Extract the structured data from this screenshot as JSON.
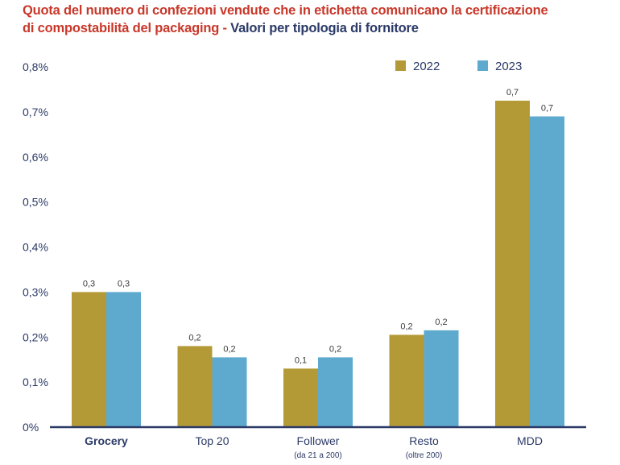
{
  "title": {
    "line1": "Quota del numero di confezioni vendute che in etichetta comunicano la certificazione",
    "line2_red": "di compostabilità del packaging -",
    "line2_blue": "Valori per tipologia di fornitore"
  },
  "colors": {
    "series_2022": "#b39a36",
    "series_2023": "#5eaacf",
    "axis": "#2b3a67"
  },
  "chart_data": {
    "type": "bar",
    "title": "Quota del numero di confezioni vendute che in etichetta comunicano la certificazione di compostabilità del packaging - Valori per tipologia di fornitore",
    "categories": [
      "Grocery",
      "Top 20",
      "Follower",
      "Resto",
      "MDD"
    ],
    "category_sublabels": [
      "",
      "",
      "(da 21 a 200)",
      "(oltre 200)",
      ""
    ],
    "series": [
      {
        "name": "2022",
        "values": [
          0.3,
          0.18,
          0.13,
          0.205,
          0.725
        ],
        "labels": [
          "0,3",
          "0,2",
          "0,1",
          "0,2",
          "0,7"
        ]
      },
      {
        "name": "2023",
        "values": [
          0.3,
          0.155,
          0.155,
          0.215,
          0.69
        ],
        "labels": [
          "0,3",
          "0,2",
          "0,2",
          "0,2",
          "0,7"
        ]
      }
    ],
    "yticks": [
      "0%",
      "0,1%",
      "0,2%",
      "0,3%",
      "0,4%",
      "0,5%",
      "0,6%",
      "0,7%",
      "0,8%"
    ],
    "ylim": [
      0,
      0.8
    ],
    "unit": "%",
    "grid": false,
    "legend_position": "top-right"
  }
}
